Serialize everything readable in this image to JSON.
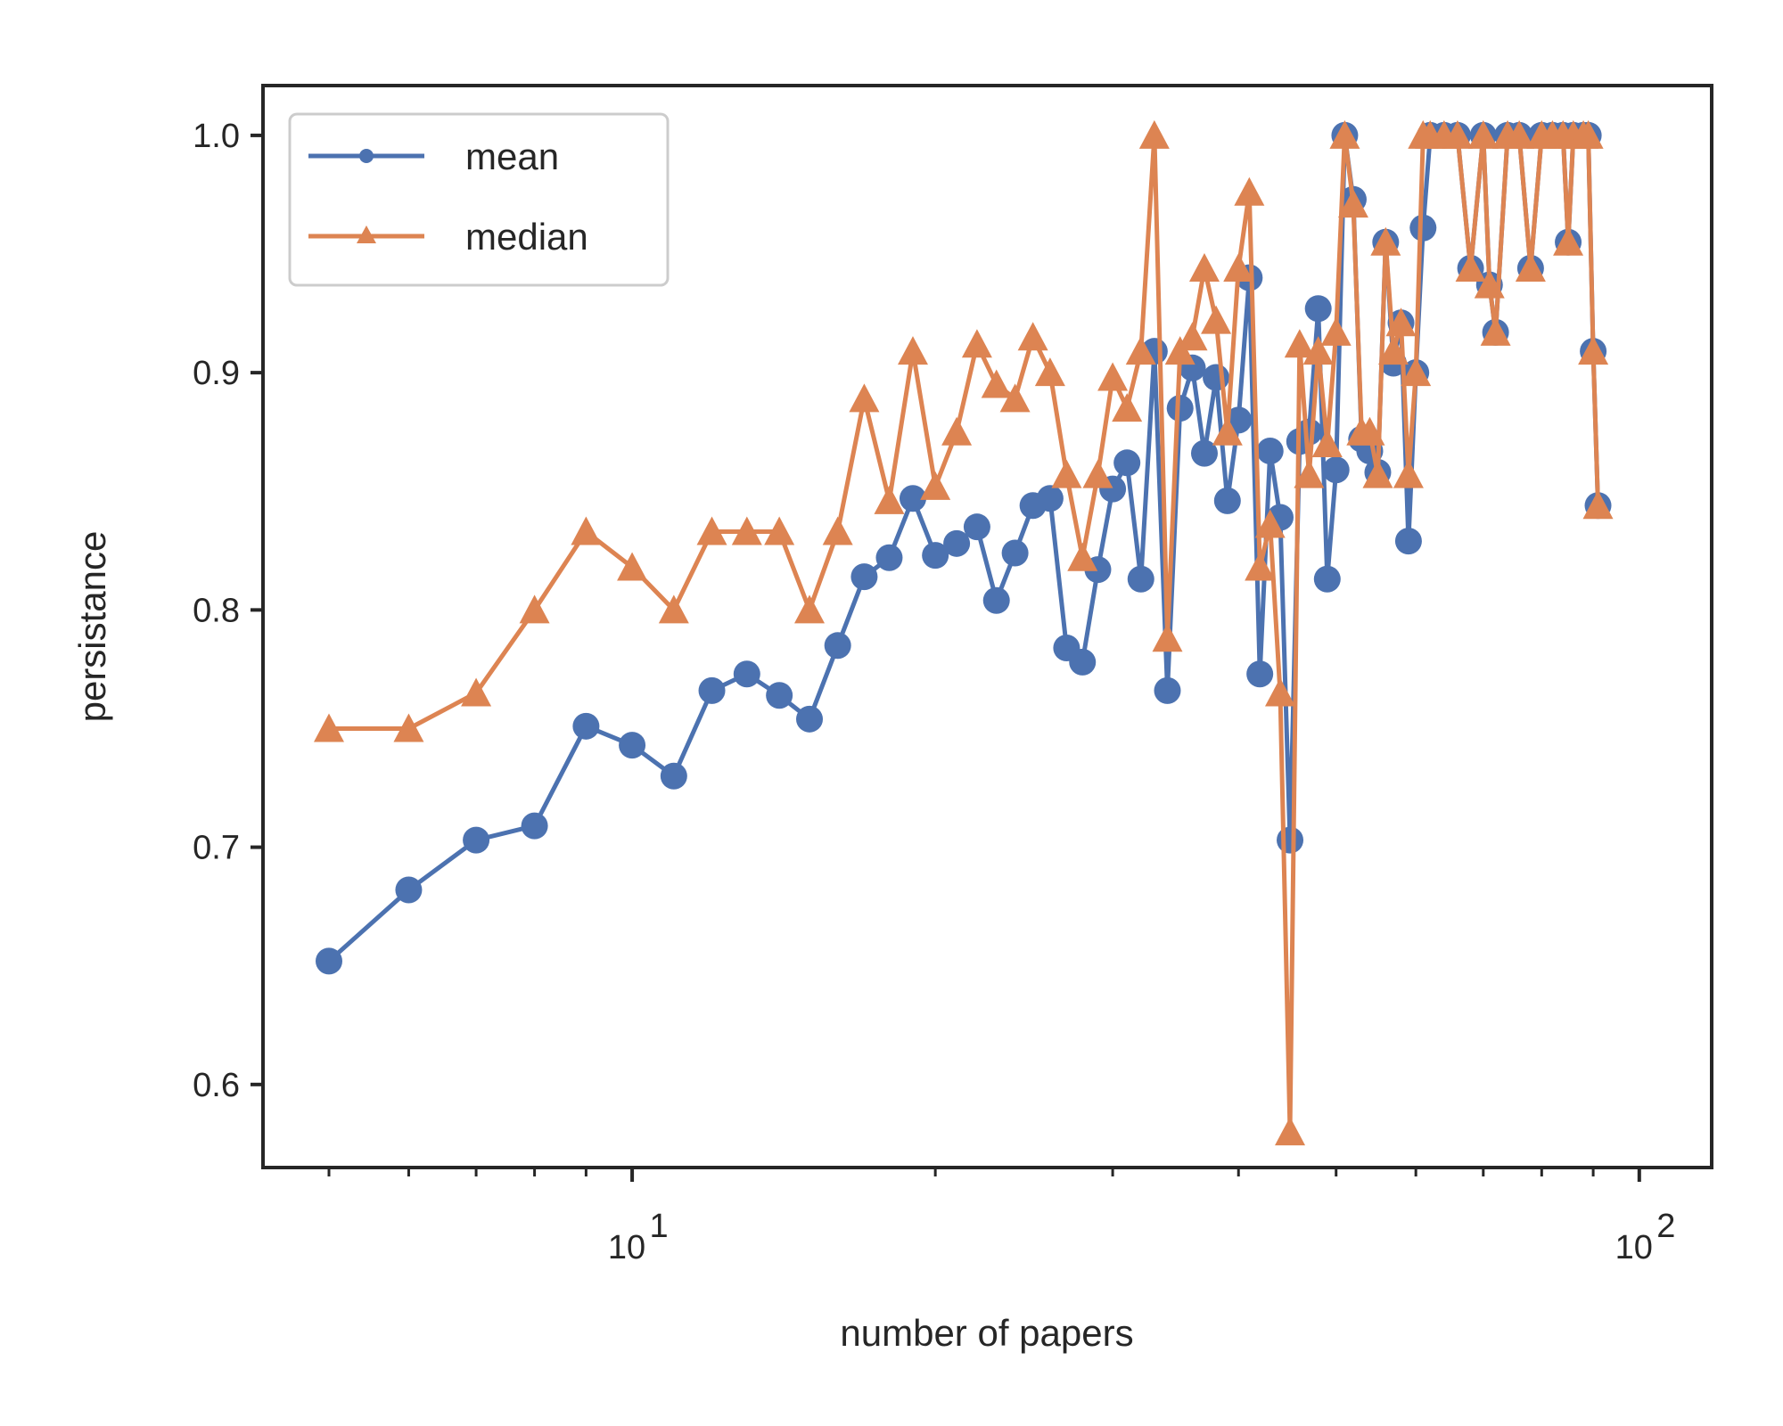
{
  "chart_data": {
    "type": "line",
    "xlabel": "number of papers",
    "ylabel": "persistance",
    "xscale": "log",
    "xlim": [
      4.3,
      118
    ],
    "ylim": [
      0.565,
      1.021
    ],
    "x_major_ticks": [
      {
        "value": 10,
        "base": "10",
        "exp": "1"
      },
      {
        "value": 100,
        "base": "10",
        "exp": "2"
      }
    ],
    "x_minor_ticks": [
      5,
      6,
      7,
      8,
      9,
      20,
      30,
      40,
      50,
      60,
      70,
      80,
      90
    ],
    "y_ticks": [
      {
        "value": 0.6,
        "label": "0.6"
      },
      {
        "value": 0.7,
        "label": "0.7"
      },
      {
        "value": 0.8,
        "label": "0.8"
      },
      {
        "value": 0.9,
        "label": "0.9"
      },
      {
        "value": 1.0,
        "label": "1.0"
      }
    ],
    "grid": false,
    "legend_position": "top-left",
    "series": [
      {
        "name": "mean",
        "color": "#4c72b0",
        "marker": "circle",
        "x": [
          5,
          6,
          7,
          8,
          9,
          10,
          11,
          12,
          13,
          14,
          15,
          16,
          17,
          18,
          19,
          20,
          21,
          22,
          23,
          24,
          25,
          26,
          27,
          28,
          29,
          30,
          31,
          32,
          33,
          34,
          35,
          36,
          37,
          38,
          39,
          40,
          41,
          42,
          43,
          44,
          45,
          46,
          47,
          48,
          49,
          50,
          51,
          52,
          53,
          54,
          55,
          56,
          57,
          58,
          59,
          60,
          61,
          62,
          64,
          66,
          68,
          70,
          71,
          72,
          74,
          76,
          78,
          80,
          82,
          84,
          85,
          86,
          88,
          89,
          90,
          91
        ],
        "y": [
          0.652,
          0.682,
          0.703,
          0.709,
          0.751,
          0.743,
          0.73,
          0.766,
          0.773,
          0.764,
          0.754,
          0.785,
          0.814,
          0.822,
          0.847,
          0.823,
          0.828,
          0.835,
          0.804,
          0.824,
          0.844,
          0.847,
          0.784,
          0.778,
          0.817,
          0.851,
          0.862,
          0.813,
          0.909,
          0.766,
          0.885,
          0.902,
          0.866,
          0.898,
          0.846,
          0.88,
          0.94,
          0.773,
          0.867,
          0.839,
          0.703,
          0.871,
          0.875,
          0.927,
          0.813,
          0.859,
          1.0,
          0.973,
          0.872,
          0.867,
          0.858,
          0.955,
          0.904,
          0.921,
          0.829,
          0.9,
          0.961,
          1.0,
          1.0,
          1.0,
          0.944,
          1.0,
          0.937,
          0.917,
          1.0,
          1.0,
          0.944,
          1.0,
          1.0,
          1.0,
          0.955,
          1.0,
          1.0,
          1.0,
          0.909,
          0.844
        ]
      },
      {
        "name": "median",
        "color": "#dd8452",
        "marker": "triangle",
        "x": [
          5,
          6,
          7,
          8,
          9,
          10,
          11,
          12,
          13,
          14,
          15,
          16,
          17,
          18,
          19,
          20,
          21,
          22,
          23,
          24,
          25,
          26,
          27,
          28,
          29,
          30,
          31,
          32,
          33,
          34,
          35,
          36,
          37,
          38,
          39,
          40,
          41,
          42,
          43,
          44,
          45,
          46,
          47,
          48,
          49,
          50,
          51,
          52,
          53,
          54,
          55,
          56,
          57,
          58,
          59,
          60,
          61,
          62,
          64,
          66,
          68,
          70,
          71,
          72,
          74,
          76,
          78,
          80,
          82,
          84,
          85,
          86,
          88,
          89,
          90,
          91
        ],
        "y": [
          0.75,
          0.75,
          0.765,
          0.8,
          0.833,
          0.818,
          0.8,
          0.833,
          0.833,
          0.833,
          0.8,
          0.833,
          0.889,
          0.846,
          0.909,
          0.852,
          0.875,
          0.912,
          0.895,
          0.889,
          0.915,
          0.9,
          0.857,
          0.822,
          0.857,
          0.898,
          0.885,
          0.909,
          1.0,
          0.788,
          0.909,
          0.915,
          0.944,
          0.922,
          0.875,
          0.944,
          0.976,
          0.818,
          0.836,
          0.765,
          0.58,
          0.912,
          0.857,
          0.909,
          0.87,
          0.917,
          1.0,
          0.971,
          0.875,
          0.875,
          0.857,
          0.955,
          0.909,
          0.921,
          0.857,
          0.9,
          1.0,
          1.0,
          1.0,
          1.0,
          0.944,
          1.0,
          0.937,
          0.917,
          1.0,
          1.0,
          0.944,
          1.0,
          1.0,
          1.0,
          0.955,
          1.0,
          1.0,
          1.0,
          0.909,
          0.844
        ]
      }
    ]
  }
}
